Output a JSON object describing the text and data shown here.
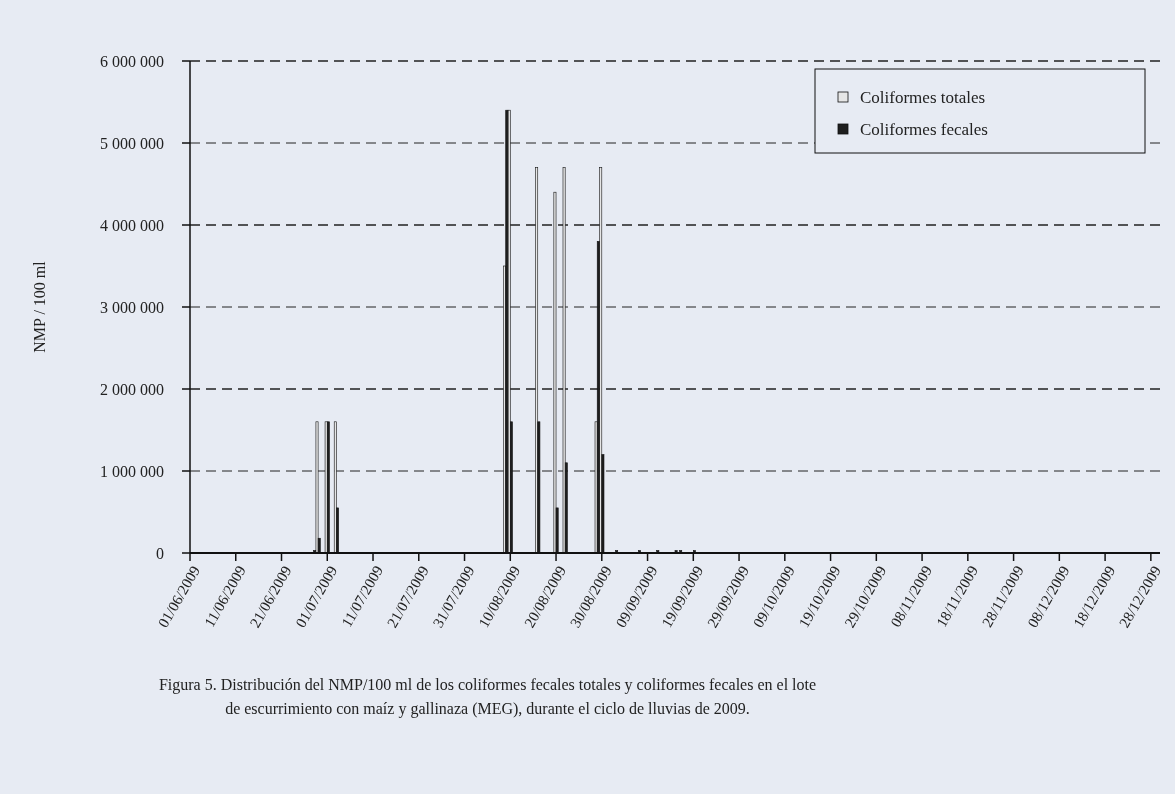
{
  "chart_data": {
    "type": "bar",
    "ylabel": "NMP / 100 ml",
    "x": [
      "2009-06-28",
      "2009-06-29",
      "2009-07-01",
      "2009-07-03",
      "2009-08-09",
      "2009-08-10",
      "2009-08-16",
      "2009-08-20",
      "2009-08-22",
      "2009-08-29",
      "2009-08-30",
      "2009-09-02",
      "2009-09-07",
      "2009-09-11",
      "2009-09-15",
      "2009-09-16",
      "2009-09-19"
    ],
    "series": [
      {
        "name": "Coliformes totales",
        "color": "#e6e6e6",
        "values": [
          null,
          1600000,
          1600000,
          1600000,
          3500000,
          5400000,
          4700000,
          4400000,
          4700000,
          1600000,
          4700000,
          null,
          null,
          null,
          null,
          null,
          null
        ]
      },
      {
        "name": "Coliformes fecales",
        "color": "#1e1e1e",
        "values": [
          30000,
          180000,
          1600000,
          550000,
          5400000,
          1600000,
          1600000,
          550000,
          1100000,
          3800000,
          1200000,
          30000,
          30000,
          30000,
          30000,
          30000,
          30000
        ]
      }
    ],
    "xlim": [
      "2009-06-01",
      "2009-12-30"
    ],
    "xticks": [
      {
        "value": "2009-06-01",
        "label": "01/06/2009"
      },
      {
        "value": "2009-06-11",
        "label": "11/06/2009"
      },
      {
        "value": "2009-06-21",
        "label": "21/06/2009"
      },
      {
        "value": "2009-07-01",
        "label": "01/07/2009"
      },
      {
        "value": "2009-07-11",
        "label": "11/07/2009"
      },
      {
        "value": "2009-07-21",
        "label": "21/07/2009"
      },
      {
        "value": "2009-07-31",
        "label": "31/07/2009"
      },
      {
        "value": "2009-08-10",
        "label": "10/08/2009"
      },
      {
        "value": "2009-08-20",
        "label": "20/08/2009"
      },
      {
        "value": "2009-08-30",
        "label": "30/08/2009"
      },
      {
        "value": "2009-09-09",
        "label": "09/09/2009"
      },
      {
        "value": "2009-09-19",
        "label": "19/09/2009"
      },
      {
        "value": "2009-09-29",
        "label": "29/09/2009"
      },
      {
        "value": "2009-10-09",
        "label": "09/10/2009"
      },
      {
        "value": "2009-10-19",
        "label": "19/10/2009"
      },
      {
        "value": "2009-10-29",
        "label": "29/10/2009"
      },
      {
        "value": "2009-11-08",
        "label": "08/11/2009"
      },
      {
        "value": "2009-11-18",
        "label": "18/11/2009"
      },
      {
        "value": "2009-11-28",
        "label": "28/11/2009"
      },
      {
        "value": "2009-12-08",
        "label": "08/12/2009"
      },
      {
        "value": "2009-12-18",
        "label": "18/12/2009"
      },
      {
        "value": "2009-12-28",
        "label": "28/12/2009"
      }
    ],
    "ylim": [
      0,
      6000000
    ],
    "yticks": [
      0,
      {
        "value": 1000000,
        "label": "1 000 000"
      },
      {
        "value": 2000000,
        "label": "2 000 000"
      },
      {
        "value": 3000000,
        "label": "3 000 000"
      },
      {
        "value": 4000000,
        "label": "4 000 000"
      },
      {
        "value": 5000000,
        "label": "5 000 000"
      },
      {
        "value": 6000000,
        "label": "6 000 000"
      }
    ],
    "grid": "y",
    "line_style": "dashed",
    "legend": "top right",
    "annotations": [
      "Figura 5. Distribución del NMP/100 ml de los coliformes fecales totales y coliformes fecales en el lote",
      "de escurrimiento con maíz y gallinaza (MEG), durante el ciclo de lluvias de 2009."
    ]
  }
}
